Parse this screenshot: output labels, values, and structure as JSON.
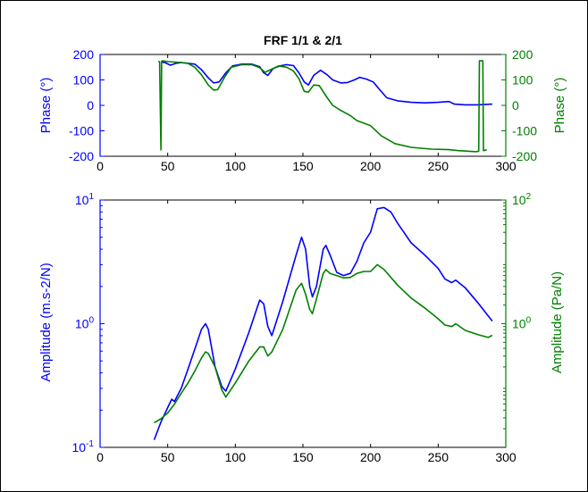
{
  "colors": {
    "left_axis": "#0000ff",
    "right_axis": "#008000",
    "frame": "#000000"
  },
  "chart_data": [
    {
      "type": "line",
      "title": "FRF 1/1 & 2/1",
      "xlabel": "",
      "xlim": [
        0,
        300
      ],
      "xticks": [
        0,
        50,
        100,
        150,
        200,
        250,
        300
      ],
      "grid": false,
      "left_axis": {
        "label": "Phase (°)",
        "ylim": [
          -200,
          200
        ],
        "ticks": [
          -200,
          -100,
          0,
          100,
          200
        ],
        "color": "#0000ff"
      },
      "right_axis": {
        "label": "Phase (°)",
        "ylim": [
          -200,
          200
        ],
        "ticks": [
          -200,
          -100,
          0,
          100,
          200
        ],
        "color": "#008000"
      },
      "series": [
        {
          "axis": "left",
          "color": "#0000ff",
          "x": [
            45,
            48,
            52,
            56,
            60,
            70,
            75,
            80,
            84,
            88,
            93,
            98,
            105,
            112,
            118,
            121,
            124,
            128,
            133,
            138,
            143,
            147,
            151,
            154,
            158,
            163,
            168,
            172,
            178,
            183,
            188,
            192,
            197,
            202,
            207,
            212,
            220,
            230,
            240,
            250,
            258,
            262,
            270,
            280,
            285,
            290
          ],
          "y": [
            170,
            168,
            158,
            165,
            168,
            162,
            140,
            108,
            88,
            92,
            128,
            155,
            162,
            162,
            152,
            128,
            118,
            145,
            155,
            160,
            156,
            128,
            92,
            80,
            118,
            138,
            120,
            100,
            88,
            90,
            100,
            110,
            103,
            92,
            60,
            30,
            18,
            12,
            10,
            12,
            15,
            5,
            2,
            2,
            4,
            5
          ]
        },
        {
          "axis": "right",
          "color": "#008000",
          "x": [
            43,
            44,
            45,
            45.5,
            46,
            50,
            55,
            60,
            65,
            70,
            75,
            80,
            84,
            87,
            92,
            97,
            105,
            112,
            118,
            122,
            126,
            132,
            138,
            143,
            147,
            151,
            154,
            158,
            162,
            168,
            172,
            178,
            185,
            190,
            195,
            200,
            208,
            218,
            230,
            245,
            258,
            265,
            272,
            278,
            280,
            280.5,
            282,
            283,
            283.5,
            285,
            286
          ],
          "y": [
            172,
            172,
            -175,
            172,
            175,
            172,
            170,
            168,
            165,
            150,
            120,
            80,
            60,
            62,
            110,
            150,
            160,
            160,
            148,
            130,
            140,
            155,
            150,
            135,
            105,
            55,
            52,
            80,
            78,
            30,
            0,
            -20,
            -40,
            -60,
            -70,
            -80,
            -120,
            -150,
            -165,
            -172,
            -174,
            -178,
            -180,
            -182,
            -180,
            175,
            175,
            175,
            -178,
            -176,
            -175
          ]
        }
      ]
    },
    {
      "type": "line",
      "title": "",
      "xlabel": "",
      "xlim": [
        0,
        300
      ],
      "xticks": [
        0,
        50,
        100,
        150,
        200,
        250,
        300
      ],
      "grid": false,
      "y_scale": "log",
      "left_axis": {
        "label": "Amplitude (m.s-2/N)",
        "ylim": [
          0.1,
          10
        ],
        "ticks": [
          {
            "value": 0.1,
            "base": "10",
            "exp": "-1"
          },
          {
            "value": 1,
            "base": "10",
            "exp": "0"
          },
          {
            "value": 10,
            "base": "10",
            "exp": "1"
          }
        ],
        "color": "#0000ff"
      },
      "right_axis": {
        "label": "Amplitude (Pa/N)",
        "ylim": [
          0.01,
          100
        ],
        "ticks": [
          {
            "value": 1,
            "base": "10",
            "exp": "0"
          },
          {
            "value": 100,
            "base": "10",
            "exp": "2"
          }
        ],
        "color": "#008000"
      },
      "series": [
        {
          "axis": "left",
          "color": "#0000ff",
          "x": [
            40,
            45,
            50,
            53,
            55,
            60,
            65,
            70,
            75,
            78,
            80,
            85,
            90,
            93,
            100,
            110,
            118,
            121,
            124,
            127,
            135,
            145,
            149,
            152,
            155,
            157,
            160,
            165,
            167,
            170,
            175,
            180,
            185,
            190,
            195,
            200,
            205,
            210,
            215,
            220,
            230,
            240,
            250,
            255,
            260,
            263,
            270,
            280,
            290
          ],
          "y": [
            0.115,
            0.16,
            0.21,
            0.245,
            0.235,
            0.3,
            0.43,
            0.62,
            0.9,
            1.0,
            0.9,
            0.45,
            0.31,
            0.285,
            0.43,
            0.85,
            1.55,
            1.45,
            0.95,
            0.8,
            1.5,
            3.6,
            5.0,
            4.0,
            2.0,
            1.65,
            2.0,
            4.0,
            4.3,
            3.6,
            2.6,
            2.45,
            2.55,
            3.2,
            4.5,
            5.5,
            8.5,
            8.7,
            8.0,
            6.5,
            4.5,
            3.6,
            2.8,
            2.3,
            2.15,
            2.25,
            1.95,
            1.45,
            1.05
          ]
        },
        {
          "axis": "right",
          "color": "#008000",
          "x": [
            40,
            45,
            50,
            55,
            60,
            65,
            70,
            75,
            78,
            80,
            85,
            90,
            93,
            100,
            110,
            118,
            121,
            124,
            127,
            135,
            145,
            149,
            152,
            155,
            157,
            160,
            165,
            167,
            170,
            175,
            180,
            185,
            190,
            195,
            200,
            205,
            210,
            220,
            230,
            240,
            250,
            255,
            260,
            263,
            270,
            280,
            287,
            290
          ],
          "y": [
            0.025,
            0.029,
            0.036,
            0.05,
            0.075,
            0.11,
            0.17,
            0.28,
            0.35,
            0.33,
            0.2,
            0.085,
            0.065,
            0.11,
            0.25,
            0.42,
            0.42,
            0.3,
            0.35,
            0.8,
            3.5,
            4.5,
            3.0,
            1.7,
            1.45,
            2.5,
            6.5,
            7.5,
            6.5,
            6.0,
            5.5,
            5.6,
            6.5,
            7.0,
            7.0,
            9.0,
            7.5,
            4.2,
            2.6,
            1.8,
            1.2,
            0.95,
            0.9,
            1.0,
            0.78,
            0.66,
            0.6,
            0.65
          ]
        }
      ]
    }
  ]
}
